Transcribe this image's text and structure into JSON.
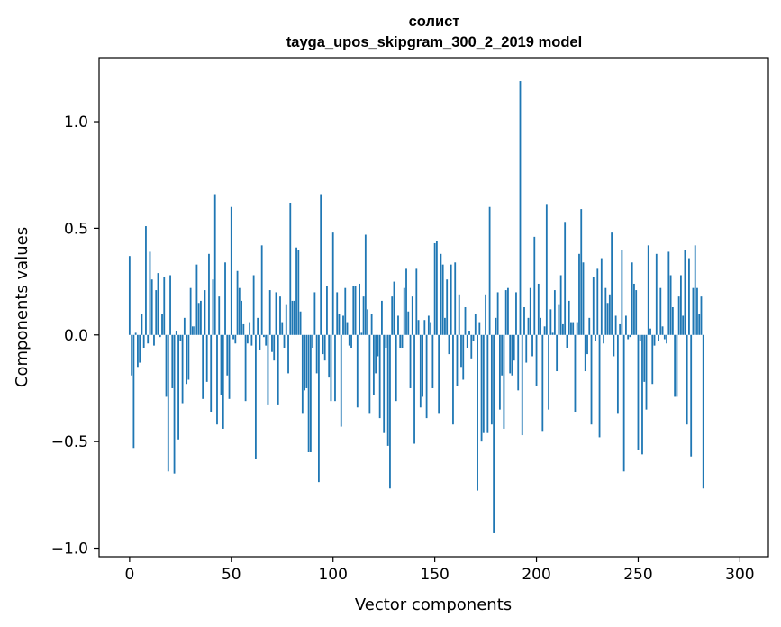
{
  "chart_data": {
    "type": "bar",
    "title_line1": "солист",
    "title_line2": "tayga_upos_skipgram_300_2_2019 model",
    "xlabel": "Vector components",
    "ylabel": "Components values",
    "xlim": [
      -15,
      314
    ],
    "ylim": [
      -1.04,
      1.3
    ],
    "xticks": [
      0,
      50,
      100,
      150,
      200,
      250,
      300
    ],
    "xtick_labels": [
      "0",
      "50",
      "100",
      "150",
      "200",
      "250",
      "300"
    ],
    "yticks": [
      -1.0,
      -0.5,
      0.0,
      0.5,
      1.0
    ],
    "ytick_labels": [
      "−1.0",
      "−0.5",
      "0.0",
      "0.5",
      "1.0"
    ],
    "bar_color": "#1f77b4",
    "values": [
      0.37,
      -0.19,
      -0.53,
      0.01,
      -0.15,
      -0.13,
      0.1,
      -0.06,
      0.51,
      -0.04,
      0.39,
      0.26,
      -0.05,
      0.21,
      0.29,
      -0.01,
      0.1,
      0.27,
      -0.29,
      -0.64,
      0.28,
      -0.25,
      -0.65,
      0.02,
      -0.49,
      -0.03,
      -0.32,
      0.08,
      -0.23,
      -0.21,
      0.22,
      0.04,
      0.04,
      0.33,
      0.15,
      0.16,
      -0.3,
      0.21,
      -0.22,
      0.38,
      -0.36,
      0.26,
      0.66,
      -0.42,
      0.18,
      -0.28,
      -0.44,
      0.34,
      -0.19,
      -0.3,
      0.6,
      -0.02,
      -0.04,
      0.3,
      0.22,
      0.16,
      0.05,
      -0.31,
      -0.04,
      0.06,
      -0.05,
      0.28,
      -0.58,
      0.08,
      -0.07,
      0.42,
      -0.01,
      -0.05,
      -0.33,
      0.21,
      -0.08,
      -0.12,
      0.2,
      -0.33,
      0.18,
      0.06,
      -0.06,
      0.14,
      -0.18,
      0.62,
      0.16,
      0.16,
      0.41,
      0.4,
      0.11,
      -0.37,
      -0.26,
      -0.25,
      -0.55,
      -0.55,
      -0.06,
      0.2,
      -0.18,
      -0.69,
      0.66,
      -0.09,
      -0.12,
      0.23,
      -0.2,
      -0.31,
      0.48,
      -0.31,
      0.2,
      0.1,
      -0.43,
      0.09,
      0.22,
      0.06,
      -0.05,
      -0.06,
      0.23,
      0.23,
      -0.34,
      0.24,
      0.01,
      0.18,
      0.47,
      0.12,
      -0.37,
      0.1,
      -0.28,
      -0.18,
      -0.1,
      -0.39,
      0.16,
      -0.46,
      -0.06,
      -0.52,
      -0.72,
      0.18,
      0.25,
      -0.31,
      0.09,
      -0.06,
      -0.06,
      0.22,
      0.31,
      0.11,
      -0.25,
      0.18,
      -0.51,
      0.31,
      0.07,
      -0.34,
      -0.29,
      0.07,
      -0.39,
      0.09,
      0.06,
      -0.25,
      0.43,
      0.44,
      -0.37,
      0.38,
      0.33,
      0.08,
      0.26,
      -0.09,
      0.33,
      -0.42,
      0.34,
      -0.24,
      0.19,
      -0.15,
      -0.21,
      0.13,
      -0.06,
      0.02,
      -0.11,
      -0.03,
      0.1,
      -0.73,
      0.06,
      -0.5,
      -0.46,
      0.19,
      -0.46,
      0.6,
      -0.42,
      -0.93,
      0.08,
      0.2,
      -0.35,
      -0.19,
      -0.44,
      0.21,
      0.22,
      -0.18,
      -0.19,
      -0.12,
      0.2,
      -0.26,
      1.19,
      -0.47,
      0.13,
      -0.13,
      0.08,
      0.22,
      -0.1,
      0.46,
      -0.24,
      0.24,
      0.08,
      -0.45,
      0.04,
      0.61,
      -0.35,
      0.12,
      0.01,
      0.21,
      -0.17,
      0.14,
      0.28,
      0.05,
      0.53,
      -0.06,
      0.16,
      0.06,
      0.06,
      -0.36,
      0.06,
      0.38,
      0.59,
      0.34,
      -0.17,
      -0.09,
      0.08,
      -0.42,
      0.27,
      -0.03,
      0.31,
      -0.48,
      0.36,
      -0.04,
      0.22,
      0.15,
      0.19,
      0.48,
      -0.1,
      0.09,
      -0.37,
      0.05,
      0.4,
      -0.64,
      0.09,
      -0.02,
      -0.01,
      0.34,
      0.24,
      0.21,
      -0.54,
      -0.03,
      -0.56,
      -0.22,
      -0.35,
      0.42,
      0.03,
      -0.23,
      -0.05,
      0.38,
      -0.03,
      0.22,
      0.04,
      -0.02,
      -0.04,
      0.39,
      0.28,
      0.13,
      -0.29,
      -0.29,
      0.18,
      0.28,
      0.09,
      0.4,
      -0.42,
      0.36,
      -0.57,
      0.22,
      0.42,
      0.22,
      0.1,
      0.18,
      -0.72
    ]
  }
}
